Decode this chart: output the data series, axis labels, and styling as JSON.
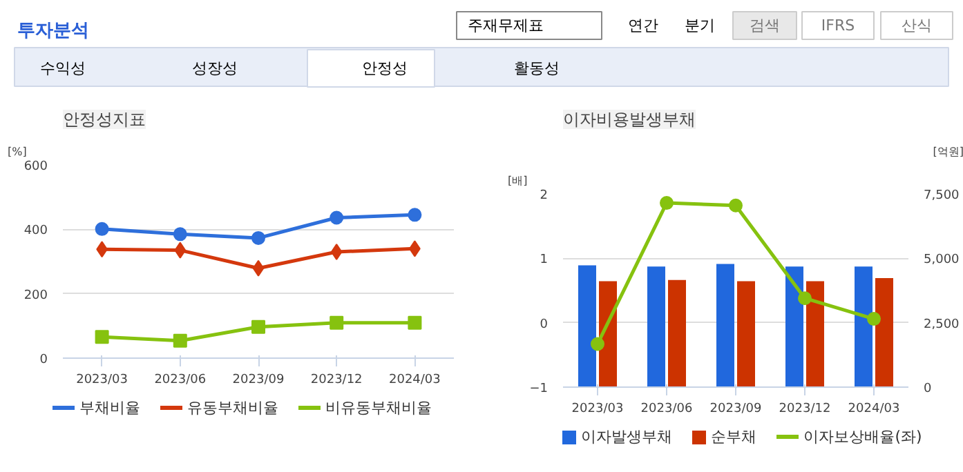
{
  "chart_data": [
    {
      "type": "other",
      "title": "투자분석",
      "annotations": [
        "주재무제표",
        "연간",
        "분기",
        "검색",
        "IFRS",
        "산식",
        "수익성",
        "성장성",
        "안정성",
        "활동성"
      ]
    },
    {
      "type": "line",
      "title": "안정성지표",
      "ylabel": "[%]",
      "categories": [
        "2023/03",
        "2023/06",
        "2023/09",
        "2023/12",
        "2024/03"
      ],
      "ylim": [
        0,
        600
      ],
      "yticks": [
        0,
        200,
        400,
        600
      ],
      "grid": "y",
      "legend": "bottom",
      "series": [
        {
          "name": "부채비율",
          "color": "#2e6fdb",
          "marker": "circle",
          "values": [
            401,
            385,
            373,
            436,
            445
          ]
        },
        {
          "name": "유동부채비율",
          "color": "#d4380d",
          "marker": "diamond",
          "values": [
            338,
            335,
            279,
            330,
            340
          ]
        },
        {
          "name": "비유동부채비율",
          "color": "#86c20f",
          "marker": "square",
          "values": [
            66,
            54,
            97,
            110,
            110
          ]
        }
      ]
    },
    {
      "type": "bar",
      "title": "이자비용발생부채",
      "ylabel": "[배]",
      "y2label": "[억원]",
      "categories": [
        "2023/03",
        "2023/06",
        "2023/09",
        "2023/12",
        "2024/03"
      ],
      "ylim": [
        -1,
        2
      ],
      "yticks": [
        -1,
        0,
        1,
        2
      ],
      "y2lim": [
        0,
        7500
      ],
      "y2ticks": [
        0,
        {
          "value": 2500,
          "label": "2,500"
        },
        {
          "value": 5000,
          "label": "5,000"
        },
        {
          "value": 7500,
          "label": "7,500"
        }
      ],
      "grid": "y",
      "legend": "bottom",
      "series": [
        {
          "name": "이자발생부채",
          "color": "#2168dd",
          "axis": "y2",
          "values": [
            4730,
            4680,
            4780,
            4680,
            4680
          ]
        },
        {
          "name": "순부채",
          "color": "#cc3300",
          "axis": "y2",
          "values": [
            4110,
            4160,
            4110,
            4110,
            4230
          ]
        },
        {
          "name": "이자보상배율(좌)",
          "type": "line",
          "color": "#86c20f",
          "marker": "circle",
          "values": [
            -0.33,
            1.86,
            1.82,
            0.38,
            0.06
          ]
        }
      ]
    }
  ]
}
